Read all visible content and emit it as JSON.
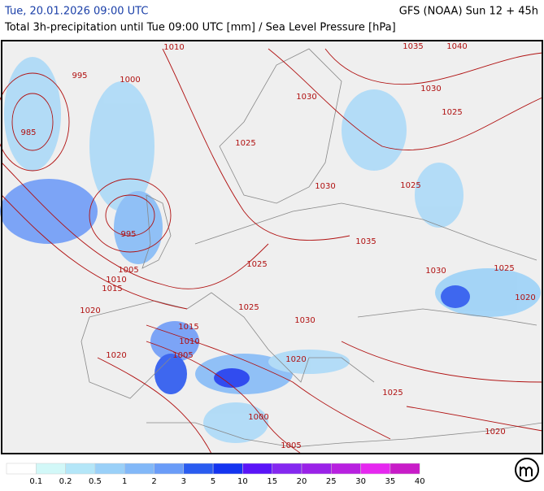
{
  "header": {
    "date": "Tue, 20.01.2026 09:00 UTC",
    "model": "GFS (NOAA) Sun 12 + 45h",
    "subtitle": "Total 3h-precipitation until Tue 09:00 UTC [mm] / Sea Level Pressure [hPa]"
  },
  "isobars": [
    "1010",
    "995",
    "1000",
    "985",
    "1035",
    "1040",
    "1030",
    "1030",
    "1025",
    "1025",
    "1030",
    "1025",
    "995",
    "1035",
    "1005",
    "1025",
    "1030",
    "1025",
    "1010",
    "1015",
    "1020",
    "1025",
    "1020",
    "1030",
    "1015",
    "1010",
    "1005",
    "1020",
    "1020",
    "1025",
    "1000",
    "1020",
    "1005"
  ],
  "legend": [
    "0.1",
    "0.2",
    "0.5",
    "1",
    "2",
    "3",
    "5",
    "10",
    "15",
    "20",
    "25",
    "30",
    "35",
    "40"
  ]
}
